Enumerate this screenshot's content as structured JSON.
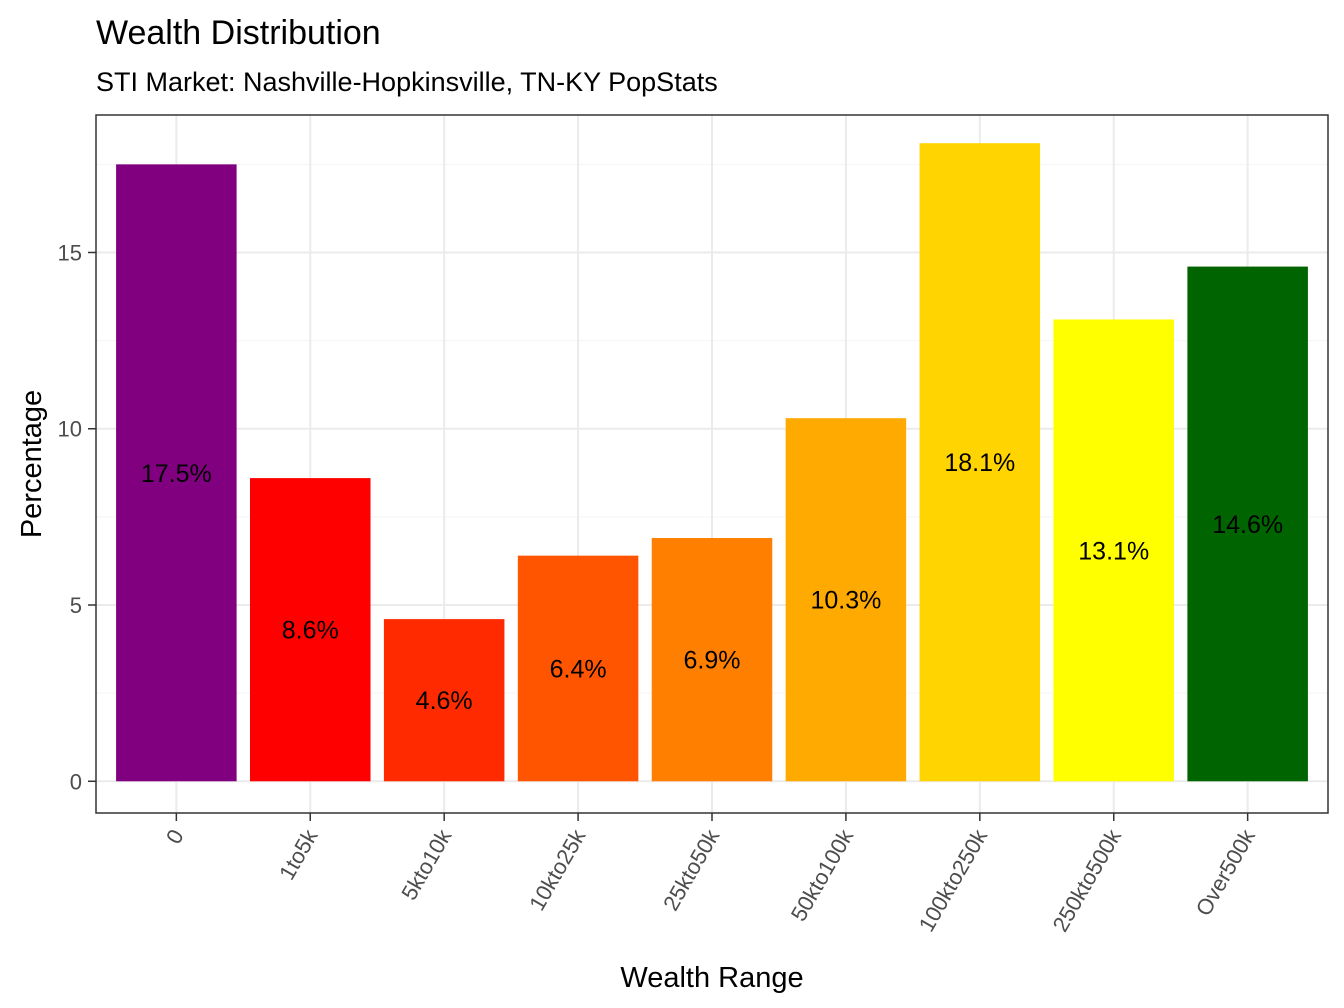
{
  "chart_data": {
    "type": "bar",
    "title": "Wealth Distribution",
    "subtitle": "STI Market: Nashville-Hopkinsville, TN-KY PopStats",
    "xlabel": "Wealth Range",
    "ylabel": "Percentage",
    "ylim": [
      -0.9,
      18.9
    ],
    "yticks": [
      0,
      5,
      10,
      15
    ],
    "grid": true,
    "legend": "none",
    "categories": [
      "0",
      "1to5k",
      "5kto10k",
      "10kto25k",
      "25kto50k",
      "50kto100k",
      "100kto250k",
      "250kto500k",
      "Over500k"
    ],
    "values": [
      17.5,
      8.6,
      4.6,
      6.4,
      6.9,
      10.3,
      18.1,
      13.1,
      14.6
    ],
    "labels": [
      "17.5%",
      "8.6%",
      "4.6%",
      "6.4%",
      "6.9%",
      "10.3%",
      "18.1%",
      "13.1%",
      "14.6%"
    ],
    "colors": [
      "#800080",
      "#ff0000",
      "#ff2a00",
      "#ff5500",
      "#ff7f00",
      "#ffaa00",
      "#ffd400",
      "#ffff00",
      "#006400"
    ]
  }
}
